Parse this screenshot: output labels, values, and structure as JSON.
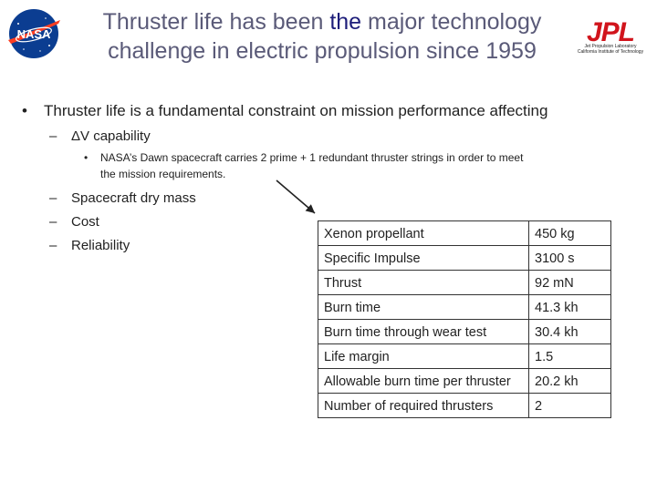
{
  "title": {
    "line1_pre": "Thruster life has been ",
    "line1_hl": "the",
    "line1_post": " major technology",
    "line2": "challenge in electric propulsion since 1959"
  },
  "logos": {
    "nasa_text": "NASA",
    "jpl_text": "JPL",
    "jpl_line1": "Jet Propulsion Laboratory",
    "jpl_line2": "California Institute of Technology"
  },
  "bullets": {
    "main": "Thruster life is a fundamental constraint on mission performance affecting",
    "main_marker": "•",
    "dash": "–",
    "sub1": "ΔV capability",
    "subsub_marker": "•",
    "subsub_line1": "NASA’s Dawn spacecraft carries 2 prime + 1 redundant thruster strings in order to meet",
    "subsub_line2": "the mission requirements.",
    "sub2": "Spacecraft dry mass",
    "sub3": "Cost",
    "sub4": "Reliability"
  },
  "table": {
    "rows": [
      {
        "label": "Xenon propellant",
        "value": "450 kg"
      },
      {
        "label": "Specific Impulse",
        "value": "3100 s"
      },
      {
        "label": "Thrust",
        "value": "92 mN"
      },
      {
        "label": "Burn time",
        "value": "41.3 kh"
      },
      {
        "label": "Burn time through wear test",
        "value": "30.4 kh"
      },
      {
        "label": "Life margin",
        "value": "1.5"
      },
      {
        "label": "Allowable burn time per thruster",
        "value": "20.2 kh"
      },
      {
        "label": "Number of required thrusters",
        "value": "2"
      }
    ]
  },
  "colors": {
    "nasa_blue": "#0b3d91",
    "nasa_red": "#fc3d21",
    "jpl_red": "#d1141c",
    "title_gray": "#5a5a78",
    "title_highlight": "#1d1d7a"
  }
}
